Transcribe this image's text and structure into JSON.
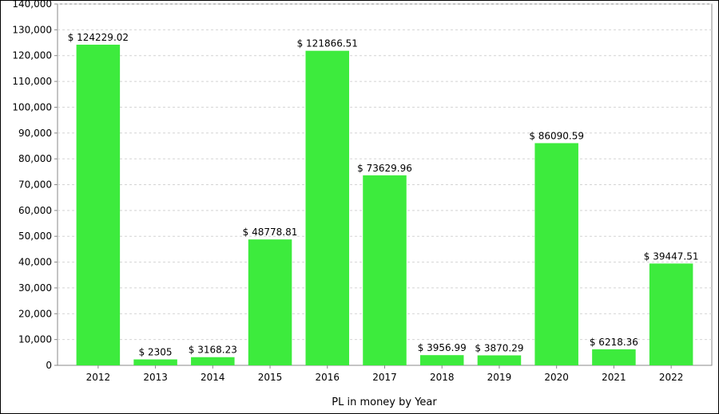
{
  "chart_data": {
    "type": "bar",
    "xlabel": "PL in money by Year",
    "ylabel": "",
    "ylim": [
      0,
      140000
    ],
    "ytick_step": 10000,
    "grid": true,
    "bar_color": "#3deb3d",
    "categories": [
      "2012",
      "2013",
      "2014",
      "2015",
      "2016",
      "2017",
      "2018",
      "2019",
      "2020",
      "2021",
      "2022"
    ],
    "values": [
      124229.02,
      2305,
      3168.23,
      48778.81,
      121866.51,
      73629.96,
      3956.99,
      3870.29,
      86090.59,
      6218.36,
      39447.51
    ],
    "data_labels": [
      "$ 124229.02",
      "$ 2305",
      "$ 3168.23",
      "$ 48778.81",
      "$ 121866.51",
      "$ 73629.96",
      "$ 3956.99",
      "$ 3870.29",
      "$ 86090.59",
      "$ 6218.36",
      "$ 39447.51"
    ]
  }
}
